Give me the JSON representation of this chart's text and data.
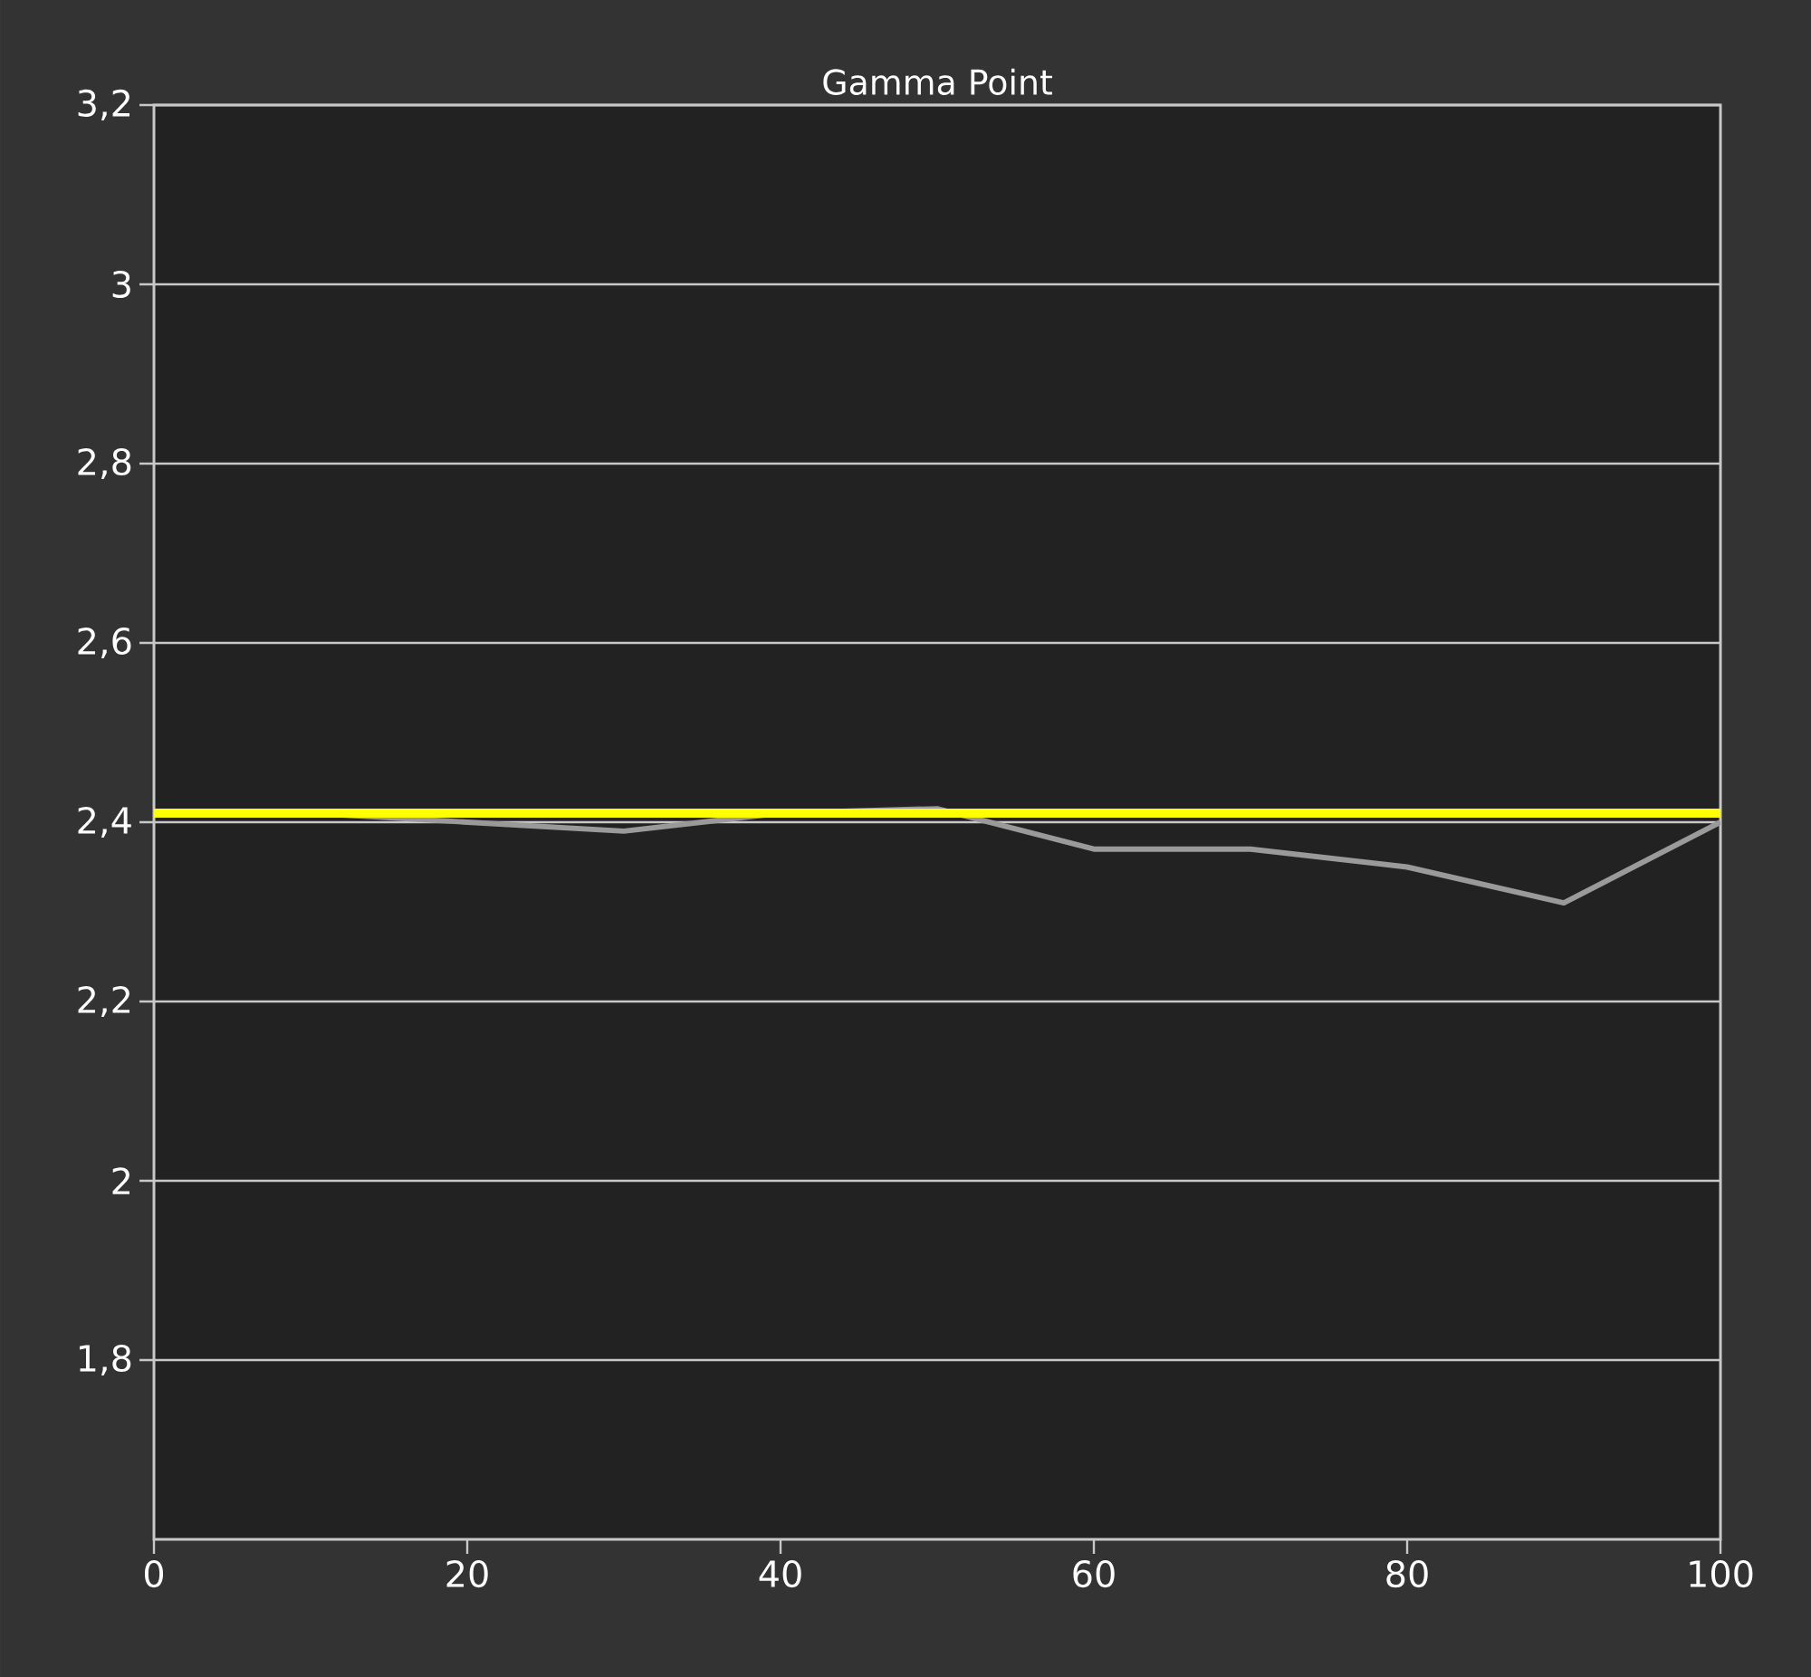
{
  "chart_data": {
    "type": "line",
    "title": "Gamma Point",
    "x": [
      0,
      10,
      20,
      30,
      40,
      50,
      60,
      70,
      80,
      90,
      100
    ],
    "series": [
      {
        "color": "#9a9a9a",
        "values": [
          2.41,
          2.41,
          2.4,
          2.39,
          2.41,
          2.415,
          2.37,
          2.37,
          2.35,
          2.31,
          2.4
        ]
      }
    ],
    "ref_lines": [
      {
        "axis": "y",
        "value": 2.41,
        "color": "#ffff00"
      }
    ],
    "xlim": [
      0,
      100
    ],
    "ylim": [
      1.6,
      3.2
    ],
    "xticks": [
      0,
      20,
      40,
      60,
      80,
      100
    ],
    "yticks": [
      {
        "value": 1.8,
        "label": "1,8"
      },
      2,
      {
        "value": 2.2,
        "label": "2,2"
      },
      {
        "value": 2.4,
        "label": "2,4"
      },
      {
        "value": 2.6,
        "label": "2,6"
      },
      {
        "value": 2.8,
        "label": "2,8"
      },
      3,
      {
        "value": 3.2,
        "label": "3,2"
      }
    ],
    "grid": "y",
    "marker": "none",
    "line_style": "solid"
  }
}
